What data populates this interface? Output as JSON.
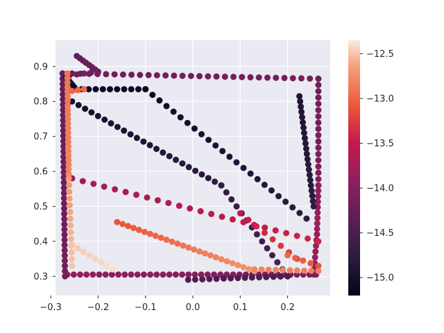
{
  "chart_data": {
    "type": "scatter",
    "style": "seaborn-darkgrid",
    "grid": true,
    "legend": "none",
    "colormap": "rocket",
    "colorbar": {
      "range": [
        -15.2,
        -12.35
      ],
      "ticks": [
        -12.5,
        -13.0,
        -13.5,
        -14.0,
        -14.5,
        -15.0
      ],
      "tick_labels": [
        "−12.5",
        "−13.0",
        "−13.5",
        "−14.0",
        "−14.5",
        "−15.0"
      ]
    },
    "xlim": [
      -0.29,
      0.29
    ],
    "ylim": [
      0.245,
      0.975
    ],
    "xticks": [
      -0.3,
      -0.2,
      -0.1,
      0.0,
      0.1,
      0.2
    ],
    "xtick_labels": [
      "−0.3",
      "−0.2",
      "−0.1",
      "0.0",
      "0.1",
      "0.2"
    ],
    "yticks": [
      0.3,
      0.4,
      0.5,
      0.6,
      0.7,
      0.8,
      0.9
    ],
    "ytick_labels": [
      "0.3",
      "0.4",
      "0.5",
      "0.6",
      "0.7",
      "0.8",
      "0.9"
    ],
    "segments": [
      {
        "from": [
          -0.245,
          0.93
        ],
        "to": [
          -0.2,
          0.885
        ],
        "n": 8,
        "c": [
          -14.3,
          -14.2
        ]
      },
      {
        "from": [
          -0.2,
          0.885
        ],
        "to": [
          -0.26,
          0.875
        ],
        "n": 5,
        "c": [
          -14.2,
          -14.1
        ]
      },
      {
        "from": [
          -0.255,
          0.88
        ],
        "to": [
          0.265,
          0.865
        ],
        "n": 30,
        "c": [
          -14.2,
          -14.1
        ]
      },
      {
        "from": [
          0.265,
          0.865
        ],
        "to": [
          0.265,
          0.56
        ],
        "n": 18,
        "c": [
          -14.2,
          -14.05
        ]
      },
      {
        "from": [
          0.265,
          0.56
        ],
        "to": [
          0.262,
          0.42
        ],
        "n": 10,
        "c": [
          -13.9,
          -13.8
        ]
      },
      {
        "from": [
          0.262,
          0.42
        ],
        "to": [
          0.255,
          0.305
        ],
        "n": 8,
        "c": [
          -13.8,
          -13.8
        ]
      },
      {
        "from": [
          0.26,
          0.305
        ],
        "to": [
          -0.265,
          0.305
        ],
        "n": 40,
        "c": [
          -14.1,
          -13.9
        ]
      },
      {
        "from": [
          -0.27,
          0.3
        ],
        "to": [
          -0.275,
          0.88
        ],
        "n": 40,
        "c": [
          -14.15,
          -14.3
        ]
      },
      {
        "from": [
          -0.268,
          0.87
        ],
        "to": [
          -0.25,
          0.84
        ],
        "n": 6,
        "c": [
          -14.8,
          -15.1
        ]
      },
      {
        "from": [
          -0.25,
          0.835
        ],
        "to": [
          -0.1,
          0.835
        ],
        "n": 11,
        "c": [
          -15.15,
          -15.1
        ]
      },
      {
        "from": [
          -0.1,
          0.835
        ],
        "to": [
          0.24,
          0.465
        ],
        "n": 24,
        "c": [
          -15.1,
          -14.75
        ]
      },
      {
        "from": [
          0.225,
          0.815
        ],
        "to": [
          0.255,
          0.5
        ],
        "n": 22,
        "c": [
          -14.9,
          -14.75
        ]
      },
      {
        "from": [
          -0.255,
          0.8
        ],
        "to": [
          0.06,
          0.56
        ],
        "n": 24,
        "c": [
          -15.0,
          -14.75
        ]
      },
      {
        "from": [
          0.06,
          0.56
        ],
        "to": [
          0.2,
          0.3
        ],
        "n": 14,
        "c": [
          -14.7,
          -14.5
        ]
      },
      {
        "from": [
          0.2,
          0.3
        ],
        "to": [
          -0.01,
          0.29
        ],
        "n": 15,
        "c": [
          -14.5,
          -14.45
        ]
      },
      {
        "from": [
          -0.255,
          0.58
        ],
        "to": [
          0.265,
          0.4
        ],
        "n": 24,
        "c": [
          -13.8,
          -13.4
        ]
      },
      {
        "from": [
          0.1,
          0.48
        ],
        "to": [
          0.22,
          0.35
        ],
        "n": 8,
        "c": [
          -13.5,
          -13.2
        ]
      },
      {
        "from": [
          0.265,
          0.33
        ],
        "to": [
          0.2,
          0.36
        ],
        "n": 5,
        "c": [
          -13.1,
          -13.0
        ]
      },
      {
        "from": [
          -0.265,
          0.88
        ],
        "to": [
          -0.262,
          0.58
        ],
        "n": 24,
        "c": [
          -12.9,
          -12.8
        ]
      },
      {
        "from": [
          -0.262,
          0.58
        ],
        "to": [
          -0.255,
          0.33
        ],
        "n": 14,
        "c": [
          -12.7,
          -12.5
        ]
      },
      {
        "from": [
          -0.255,
          0.39
        ],
        "to": [
          -0.17,
          0.32
        ],
        "n": 8,
        "c": [
          -12.5,
          -12.4
        ]
      },
      {
        "from": [
          -0.16,
          0.455
        ],
        "to": [
          0.13,
          0.315
        ],
        "n": 26,
        "c": [
          -13.1,
          -12.7
        ]
      },
      {
        "from": [
          0.13,
          0.32
        ],
        "to": [
          0.265,
          0.315
        ],
        "n": 10,
        "c": [
          -12.8,
          -12.85
        ]
      },
      {
        "from": [
          -0.255,
          0.83
        ],
        "to": [
          -0.23,
          0.835
        ],
        "n": 3,
        "c": [
          -13.0,
          -13.0
        ]
      }
    ]
  }
}
